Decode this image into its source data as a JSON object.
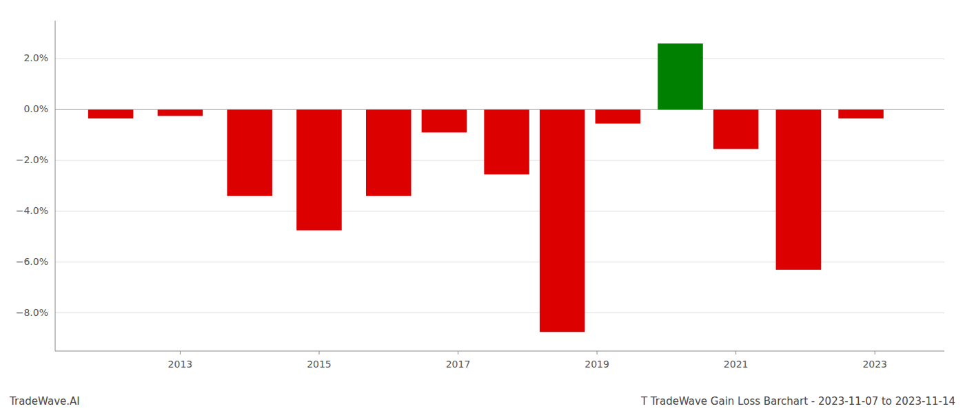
{
  "chart_data": {
    "type": "bar",
    "x": [
      2012,
      2013,
      2014,
      2015,
      2016,
      2016.8,
      2017.7,
      2018.5,
      2019.3,
      2020.2,
      2021,
      2021.9,
      2022.8
    ],
    "values": [
      -0.35,
      -0.25,
      -3.4,
      -4.75,
      -3.4,
      -0.9,
      -2.55,
      -8.75,
      -0.55,
      2.6,
      -1.55,
      -6.3,
      -0.35
    ],
    "colors": [
      "#dd0000",
      "#dd0000",
      "#dd0000",
      "#dd0000",
      "#dd0000",
      "#dd0000",
      "#dd0000",
      "#dd0000",
      "#dd0000",
      "#008000",
      "#dd0000",
      "#dd0000",
      "#dd0000"
    ],
    "xlim": [
      2011.2,
      2024.0
    ],
    "ylim": [
      -9.5,
      3.5
    ],
    "xticks": [
      2013,
      2015,
      2017,
      2019,
      2021,
      2023
    ],
    "yticks": [
      {
        "value": -8.0,
        "label": "−8.0%"
      },
      {
        "value": -6.0,
        "label": "−6.0%"
      },
      {
        "value": -4.0,
        "label": "−4.0%"
      },
      {
        "value": -2.0,
        "label": "−2.0%"
      },
      {
        "value": 0.0,
        "label": "0.0%"
      },
      {
        "value": 2.0,
        "label": "2.0%"
      }
    ],
    "grid": true,
    "annotations": [
      "TradeWave.AI",
      "T TradeWave Gain Loss Barchart - 2023-11-07 to 2023-11-14"
    ]
  }
}
